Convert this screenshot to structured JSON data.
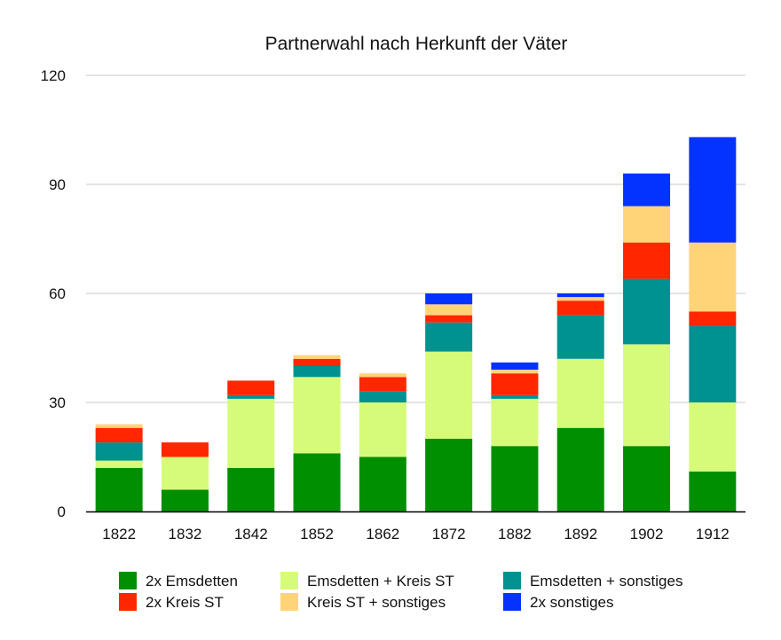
{
  "chart_data": {
    "type": "bar",
    "stacked": true,
    "title": "Partnerwahl nach Herkunft der Väter",
    "xlabel": "",
    "ylabel": "",
    "ylim": [
      0,
      120
    ],
    "yticks": [
      0,
      30,
      60,
      90,
      120
    ],
    "grid": true,
    "legend_position": "bottom",
    "categories": [
      "1822",
      "1832",
      "1842",
      "1852",
      "1862",
      "1872",
      "1882",
      "1892",
      "1902",
      "1912"
    ],
    "series": [
      {
        "name": "2x Emsdetten",
        "color": "#008f00",
        "values": [
          12,
          6,
          12,
          16,
          15,
          20,
          18,
          23,
          18,
          11
        ]
      },
      {
        "name": "Emsdetten + Kreis ST",
        "color": "#d5fb79",
        "values": [
          2,
          9,
          19,
          21,
          15,
          24,
          13,
          19,
          28,
          19
        ]
      },
      {
        "name": "Emsdetten + sonstiges",
        "color": "#009191",
        "values": [
          5,
          0,
          1,
          3,
          3,
          8,
          1,
          12,
          18,
          21
        ]
      },
      {
        "name": "2x Kreis ST",
        "color": "#ff2600",
        "values": [
          4,
          4,
          4,
          2,
          4,
          2,
          6,
          4,
          10,
          4
        ]
      },
      {
        "name": "Kreis ST + sonstiges",
        "color": "#ffd479",
        "values": [
          1,
          0,
          0,
          1,
          1,
          3,
          1,
          1,
          10,
          19
        ]
      },
      {
        "name": "2x sonstiges",
        "color": "#0433ff",
        "values": [
          0,
          0,
          0,
          0,
          0,
          3,
          2,
          1,
          9,
          29
        ]
      }
    ]
  }
}
